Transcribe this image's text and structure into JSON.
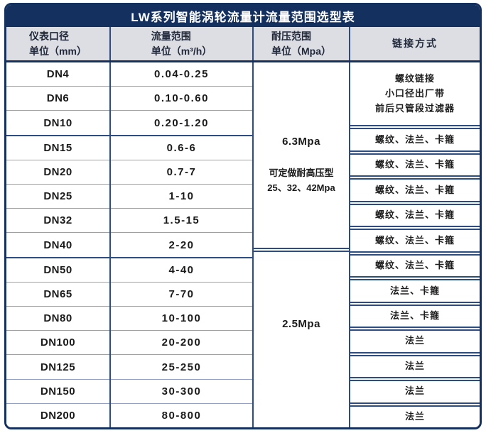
{
  "title": "LW系列智能涡轮流量计流量范围选型表",
  "colors": {
    "navy": "#13305f",
    "grid_dark": "#2b4d83",
    "grid_light": "#93a0bf",
    "header_bg": "#dcdee4"
  },
  "columns": [
    {
      "lines": [
        "仪表口径",
        "单位（mm）"
      ]
    },
    {
      "lines": [
        "流量范围",
        "单位（m³/h）"
      ]
    },
    {
      "lines": [
        "耐压范围",
        "单位（Mpa）"
      ]
    },
    {
      "lines": [
        "链接方式"
      ]
    }
  ],
  "rows": [
    {
      "dn": "DN4",
      "flow": "0.04-0.25"
    },
    {
      "dn": "DN6",
      "flow": "0.10-0.60"
    },
    {
      "dn": "DN10",
      "flow": "0.20-1.20"
    },
    {
      "dn": "DN15",
      "flow": "0.6-6"
    },
    {
      "dn": "DN20",
      "flow": "0.7-7"
    },
    {
      "dn": "DN25",
      "flow": "1-10"
    },
    {
      "dn": "DN32",
      "flow": "1.5-15"
    },
    {
      "dn": "DN40",
      "flow": "2-20"
    },
    {
      "dn": "DN50",
      "flow": "4-40"
    },
    {
      "dn": "DN65",
      "flow": "7-70"
    },
    {
      "dn": "DN80",
      "flow": "10-100"
    },
    {
      "dn": "DN100",
      "flow": "20-200"
    },
    {
      "dn": "DN125",
      "flow": "25-250"
    },
    {
      "dn": "DN150",
      "flow": "30-300"
    },
    {
      "dn": "DN200",
      "flow": "80-800"
    }
  ],
  "section_end_rows": [
    2,
    7
  ],
  "pressure_sections": [
    {
      "rows": 8,
      "main": "6.3Mpa",
      "note": [
        "可定做耐高压型",
        "25、32、42Mpa"
      ]
    },
    {
      "rows": 7,
      "main": "2.5Mpa",
      "note": []
    }
  ],
  "connection_cells": [
    {
      "rows": 3,
      "lines": [
        "螺纹链接",
        "小口径出厂带",
        "前后只管段过滤器"
      ]
    },
    {
      "rows": 1,
      "lines": [
        "螺纹、法兰、卡箍"
      ]
    },
    {
      "rows": 1,
      "lines": [
        "螺纹、法兰、卡箍"
      ]
    },
    {
      "rows": 1,
      "lines": [
        "螺纹、法兰、卡箍"
      ]
    },
    {
      "rows": 1,
      "lines": [
        "螺纹、法兰、卡箍"
      ]
    },
    {
      "rows": 1,
      "lines": [
        "螺纹、法兰、卡箍"
      ]
    },
    {
      "rows": 1,
      "lines": [
        "螺纹、法兰、卡箍"
      ]
    },
    {
      "rows": 1,
      "lines": [
        "法兰、卡箍"
      ]
    },
    {
      "rows": 1,
      "lines": [
        "法兰、卡箍"
      ]
    },
    {
      "rows": 1,
      "lines": [
        "法兰"
      ]
    },
    {
      "rows": 1,
      "lines": [
        "法兰"
      ]
    },
    {
      "rows": 1,
      "lines": [
        "法兰"
      ]
    },
    {
      "rows": 1,
      "lines": [
        "法兰"
      ]
    }
  ],
  "chart_data": {
    "type": "table",
    "title": "LW系列智能涡轮流量计流量范围选型表",
    "columns": [
      "仪表口径 单位（mm）",
      "流量范围 单位（m³/h）",
      "耐压范围 单位（Mpa）",
      "链接方式"
    ],
    "rows": [
      [
        "DN4",
        "0.04-0.25",
        "6.3Mpa 可定做耐高压型25、32、42Mpa",
        "螺纹链接 小口径出厂带 前后只管段过滤器"
      ],
      [
        "DN6",
        "0.10-0.60",
        "6.3Mpa 可定做耐高压型25、32、42Mpa",
        "螺纹链接 小口径出厂带 前后只管段过滤器"
      ],
      [
        "DN10",
        "0.20-1.20",
        "6.3Mpa 可定做耐高压型25、32、42Mpa",
        "螺纹链接 小口径出厂带 前后只管段过滤器"
      ],
      [
        "DN15",
        "0.6-6",
        "6.3Mpa 可定做耐高压型25、32、42Mpa",
        "螺纹、法兰、卡箍"
      ],
      [
        "DN20",
        "0.7-7",
        "6.3Mpa 可定做耐高压型25、32、42Mpa",
        "螺纹、法兰、卡箍"
      ],
      [
        "DN25",
        "1-10",
        "6.3Mpa 可定做耐高压型25、32、42Mpa",
        "螺纹、法兰、卡箍"
      ],
      [
        "DN32",
        "1.5-15",
        "6.3Mpa 可定做耐高压型25、32、42Mpa",
        "螺纹、法兰、卡箍"
      ],
      [
        "DN40",
        "2-20",
        "6.3Mpa 可定做耐高压型25、32、42Mpa",
        "螺纹、法兰、卡箍"
      ],
      [
        "DN50",
        "4-40",
        "2.5Mpa",
        "螺纹、法兰、卡箍"
      ],
      [
        "DN65",
        "7-70",
        "2.5Mpa",
        "法兰、卡箍"
      ],
      [
        "DN80",
        "10-100",
        "2.5Mpa",
        "法兰、卡箍"
      ],
      [
        "DN100",
        "20-200",
        "2.5Mpa",
        "法兰"
      ],
      [
        "DN125",
        "25-250",
        "2.5Mpa",
        "法兰"
      ],
      [
        "DN150",
        "30-300",
        "2.5Mpa",
        "法兰"
      ],
      [
        "DN200",
        "80-800",
        "2.5Mpa",
        "法兰"
      ]
    ]
  }
}
